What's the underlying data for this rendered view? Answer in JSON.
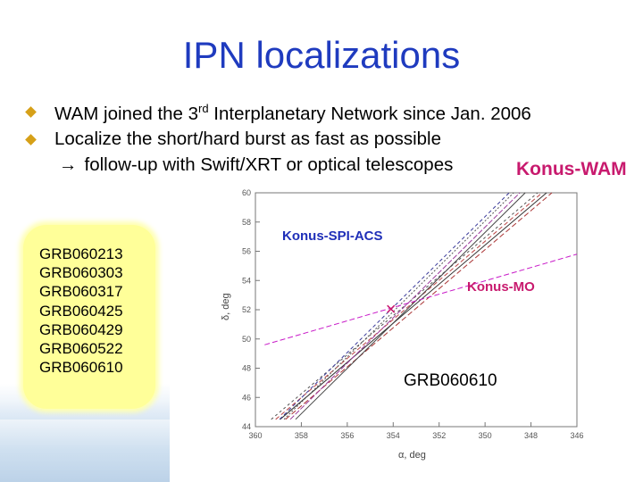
{
  "title": "IPN localizations",
  "bullets": [
    {
      "pre": "WAM joined the 3",
      "sup": "rd",
      "post": " Interplanetary Network since Jan. 2006"
    },
    {
      "text": "Localize the short/hard burst as fast as possible"
    }
  ],
  "arrow_line": "follow-up with Swift/XRT or optical telescopes",
  "colors": {
    "title": "#1f3bbf",
    "bullet": "#d6a018",
    "magenta": "#c81a6e",
    "blue": "#1f2fb8",
    "box": "#ffff99"
  },
  "grb_list": [
    "GRB060213",
    "GRB060303",
    "GRB060317",
    "GRB060425",
    "GRB060429",
    "GRB060522",
    "GRB060610"
  ],
  "chart_labels": {
    "konus_wam": "Konus-WAM",
    "konus_spi": "Konus-SPI-ACS",
    "konus_mo": "Konus-MO",
    "grb": "GRB060610"
  },
  "chart_data": {
    "type": "line",
    "xlabel": "α, deg",
    "ylabel": "δ, deg",
    "xticks": [
      "360",
      "358",
      "356",
      "354",
      "352",
      "350",
      "348",
      "346"
    ],
    "yticks": [
      "60",
      "58",
      "56",
      "54",
      "52",
      "50",
      "48",
      "46",
      "44"
    ],
    "xlim": [
      360,
      346
    ],
    "ylim": [
      44,
      60
    ],
    "series": [
      {
        "name": "Konus-WAM",
        "points": [
          [
            359,
            44.5
          ],
          [
            347.4,
            60
          ]
        ]
      },
      {
        "name": "Konus-SPI-ACS",
        "points": [
          [
            358.6,
            44.5
          ],
          [
            348.6,
            60
          ]
        ]
      },
      {
        "name": "Konus-MO",
        "points": [
          [
            359.6,
            49.6
          ],
          [
            346,
            55.8
          ]
        ]
      }
    ]
  }
}
